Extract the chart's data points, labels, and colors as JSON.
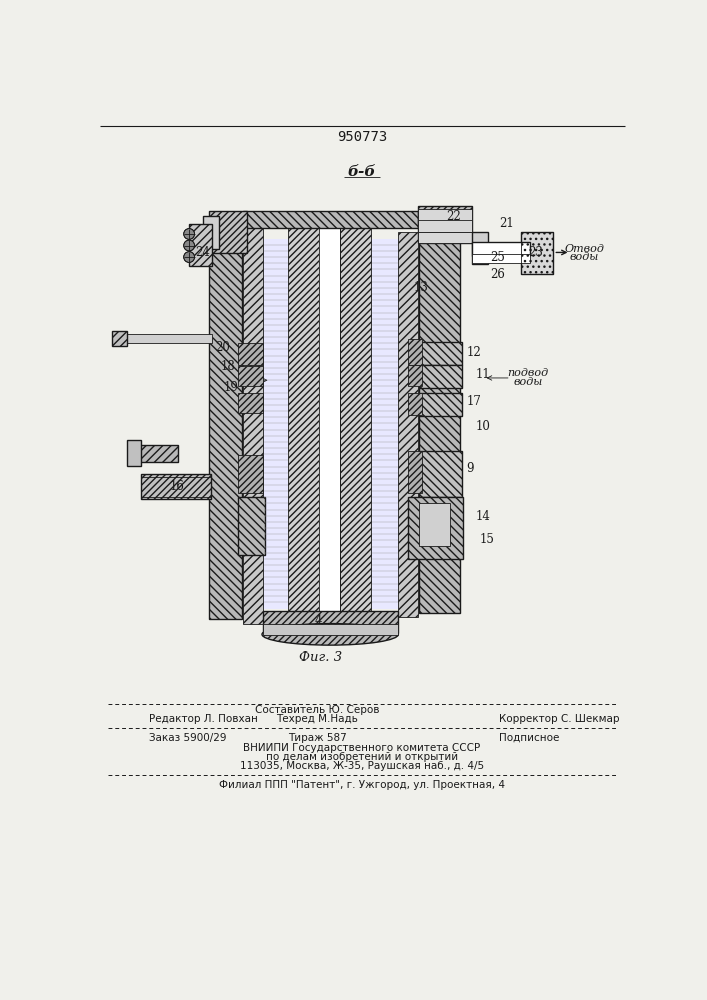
{
  "patent_number": "950773",
  "section_label": "б-б",
  "figure_label": "Фиг. 3",
  "bg_color": "#f0f0eb",
  "line_color": "#1a1a1a",
  "footer_editor": "Редактор Л. Повхан",
  "footer_sostavitel": "Составитель Ю. Серов",
  "footer_techred": "Техред М.Надь",
  "footer_corrector": "Корректор С. Шекмар",
  "footer_zakaz": "Заказ 5900/29",
  "footer_tirazh": "Тираж 587",
  "footer_podpisnoe": "Подписное",
  "footer_vniiipi": "ВНИИПИ Государственного комитета СССР",
  "footer_po_delam": "по делам изобретений и открытий",
  "footer_address": "113035, Москва, Ж-35, Раушская наб., д. 4/5",
  "footer_filial": "Филиал ППП \"Патент\", г. Ужгород, ул. Проектная, 4",
  "text_podvod": "подвод",
  "text_vody": "воды",
  "text_otvod": "Отвод",
  "text_vody2": "воды"
}
